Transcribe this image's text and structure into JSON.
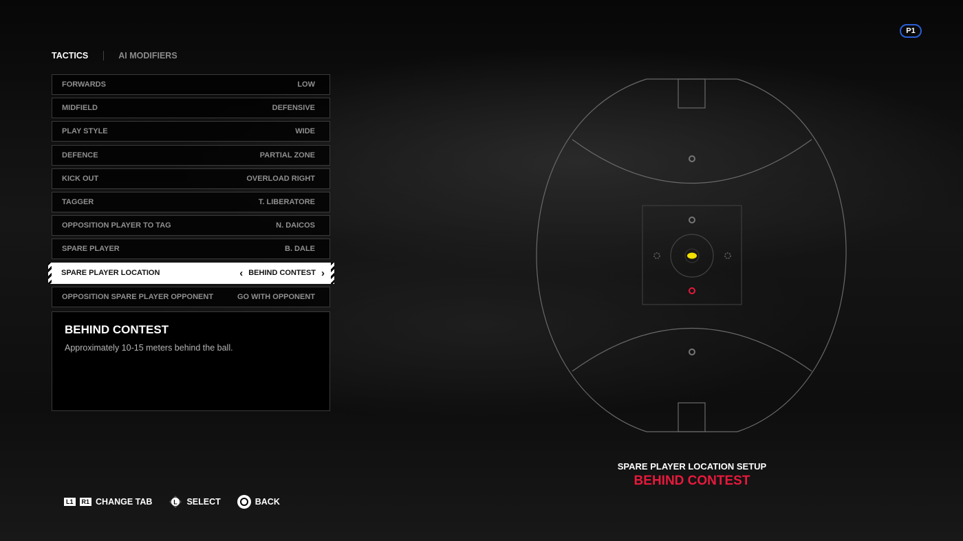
{
  "tabs": [
    {
      "label": "TACTICS",
      "active": true
    },
    {
      "label": "AI MODIFIERS",
      "active": false
    }
  ],
  "player_badge": "P1",
  "settings": [
    {
      "label": "FORWARDS",
      "value": "LOW"
    },
    {
      "label": "MIDFIELD",
      "value": "DEFENSIVE"
    },
    {
      "label": "PLAY STYLE",
      "value": "WIDE"
    },
    {
      "label": "DEFENCE",
      "value": "PARTIAL ZONE"
    },
    {
      "label": "KICK OUT",
      "value": "OVERLOAD RIGHT"
    },
    {
      "label": "TAGGER",
      "value": "T. LIBERATORE"
    },
    {
      "label": "OPPOSITION PLAYER TO TAG",
      "value": "N. DAICOS"
    },
    {
      "label": "SPARE PLAYER",
      "value": "B. DALE"
    },
    {
      "label": "SPARE PLAYER LOCATION",
      "value": "BEHIND CONTEST",
      "selected": true
    },
    {
      "label": "OPPOSITION SPARE PLAYER OPPONENT",
      "value": "GO WITH OPPONENT"
    }
  ],
  "description": {
    "title": "BEHIND CONTEST",
    "text": "Approximately 10-15 meters behind the ball."
  },
  "field_caption": {
    "heading": "SPARE PLAYER LOCATION SETUP",
    "value": "BEHIND CONTEST"
  },
  "hints": {
    "l1": "L1",
    "r1": "R1",
    "change_tab": "CHANGE TAB",
    "l_stick": "L",
    "select": "SELECT",
    "back": "BACK"
  },
  "colors": {
    "accent_red": "#e8193c",
    "ball_yellow": "#f2e000",
    "badge_blue": "#2a5fd8"
  }
}
